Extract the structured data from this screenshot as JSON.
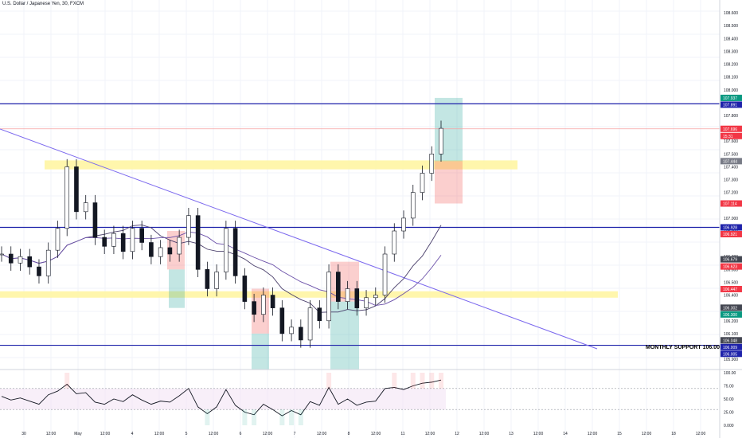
{
  "chart_title": "U.S. Dollar / Japanese Yen, 30, FXCM",
  "support_label": "MONTHLY SUPPORT 106.00",
  "price_axis": [
    "108.600",
    "108.500",
    "108.400",
    "108.300",
    "108.200",
    "108.100",
    "108.000",
    "107.800",
    "107.600",
    "107.500",
    "107.400",
    "107.300",
    "107.200",
    "107.000",
    "106.900",
    "106.700",
    "106.600",
    "106.500",
    "106.400",
    "106.200",
    "106.100",
    "105.900"
  ],
  "time_axis": [
    "30",
    "12:00",
    "May",
    "12:00",
    "4",
    "12:00",
    "5",
    "12:00",
    "6",
    "12:00",
    "7",
    "12:00",
    "8",
    "12:00",
    "11",
    "12:00",
    "12",
    "12:00",
    "13",
    "12:00",
    "14",
    "12:00",
    "15",
    "12:00",
    "18",
    "12:00"
  ],
  "rsi_axis": [
    "100.00",
    "75.00",
    "50.00",
    "25.00",
    "0.000"
  ],
  "badges": [
    {
      "label": "107.937",
      "color": "#089981"
    },
    {
      "label": "107.891",
      "color": "#1e22aa"
    },
    {
      "label": "107.696",
      "color": "#f23645"
    },
    {
      "label": "15:31",
      "color": "#f23645"
    },
    {
      "label": "107.444",
      "color": "#787b86"
    },
    {
      "label": "107.114",
      "color": "#f23645"
    },
    {
      "label": "106.928",
      "color": "#1e22aa"
    },
    {
      "label": "106.921",
      "color": "#f23645"
    },
    {
      "label": "106.679",
      "color": "#434651"
    },
    {
      "label": "106.623",
      "color": "#f23645"
    },
    {
      "label": "106.447",
      "color": "#f23645"
    },
    {
      "label": "106.302",
      "color": "#434651"
    },
    {
      "label": "106.300",
      "color": "#089981"
    },
    {
      "label": "106.048",
      "color": "#434651"
    },
    {
      "label": "106.009",
      "color": "#1e22aa"
    },
    {
      "label": "106.005",
      "color": "#1e22aa"
    }
  ],
  "colors": {
    "horizontal_level": "#1e22aa",
    "zone_yellow": "#fff59d",
    "long_profit": "#26a69a",
    "short_loss": "#ef5350",
    "trendline": "#7b68ee",
    "candle": "#131722",
    "rsi_line": "#131722",
    "rsi_overbought": "#f23645",
    "rsi_oversold": "#089981"
  },
  "chart_data": {
    "type": "candlestick",
    "symbol": "U.S. Dollar / Japanese Yen",
    "interval": "30",
    "source": "FXCM",
    "horizontal_levels": [
      107.891,
      106.928,
      106.009
    ],
    "last_price": 107.696,
    "supply_demand_zones": [
      [
        107.38,
        107.45
      ],
      [
        106.38,
        106.43
      ]
    ],
    "long_position": {
      "entry": 107.444,
      "target": 107.937,
      "stop": 107.114
    },
    "close_series": [
      106.72,
      106.65,
      106.7,
      106.62,
      106.55,
      106.75,
      106.92,
      107.4,
      107.05,
      107.12,
      106.85,
      106.78,
      106.88,
      106.74,
      106.92,
      106.81,
      106.7,
      106.77,
      106.72,
      106.85,
      107.02,
      106.6,
      106.45,
      106.58,
      106.92,
      106.55,
      106.35,
      106.25,
      106.4,
      106.3,
      106.1,
      106.15,
      106.05,
      106.3,
      106.2,
      106.58,
      106.35,
      106.45,
      106.3,
      106.38,
      106.4,
      106.72,
      106.9,
      107.0,
      107.2,
      107.35,
      107.5,
      107.7
    ],
    "rsi": [
      55,
      48,
      52,
      46,
      40,
      58,
      65,
      78,
      60,
      62,
      44,
      40,
      50,
      45,
      58,
      48,
      40,
      46,
      44,
      56,
      70,
      35,
      22,
      35,
      68,
      38,
      25,
      20,
      40,
      30,
      18,
      28,
      20,
      45,
      38,
      72,
      40,
      50,
      38,
      44,
      46,
      70,
      72,
      68,
      75,
      80,
      82,
      86
    ]
  }
}
